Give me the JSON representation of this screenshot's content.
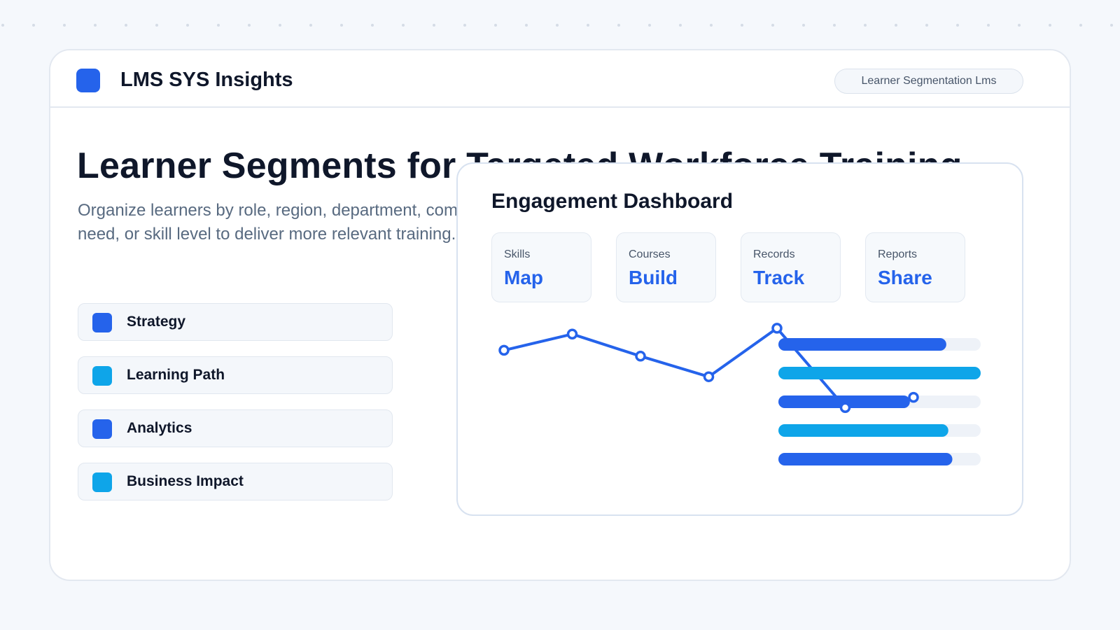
{
  "brand": {
    "name": "LMS SYS Insights",
    "tag": "Learner Segmentation Lms"
  },
  "hero": {
    "title": "Learner Segments for Targeted Workforce Training",
    "description": "Organize learners by role, region, department, compliance need, or skill level to deliver more relevant training."
  },
  "features": [
    {
      "label": "Strategy",
      "color": "#2563eb"
    },
    {
      "label": "Learning Path",
      "color": "#0ea5e9"
    },
    {
      "label": "Analytics",
      "color": "#2563eb"
    },
    {
      "label": "Business Impact",
      "color": "#0ea5e9"
    }
  ],
  "dashboard": {
    "title": "Engagement Dashboard",
    "stats": [
      {
        "key": "Skills",
        "value": "Map"
      },
      {
        "key": "Courses",
        "value": "Build"
      },
      {
        "key": "Records",
        "value": "Track"
      },
      {
        "key": "Reports",
        "value": "Share"
      }
    ]
  },
  "colors": {
    "accent": "#2563eb",
    "accent_light": "#0ea5e9",
    "track": "#eef2f8"
  },
  "chart_data": [
    {
      "type": "line",
      "x": [
        1,
        2,
        3,
        4,
        5,
        6,
        7
      ],
      "series": [
        {
          "values": [
            0.66,
            0.77,
            0.62,
            0.48,
            0.81,
            0.27,
            0.34
          ],
          "color": "#2563eb"
        }
      ]
    },
    {
      "type": "bar",
      "orientation": "horizontal",
      "values": [
        0.83,
        1.0,
        0.65,
        0.84,
        0.86
      ],
      "colors": [
        "#2563eb",
        "#0ea5e9",
        "#2563eb",
        "#0ea5e9",
        "#2563eb"
      ]
    }
  ]
}
